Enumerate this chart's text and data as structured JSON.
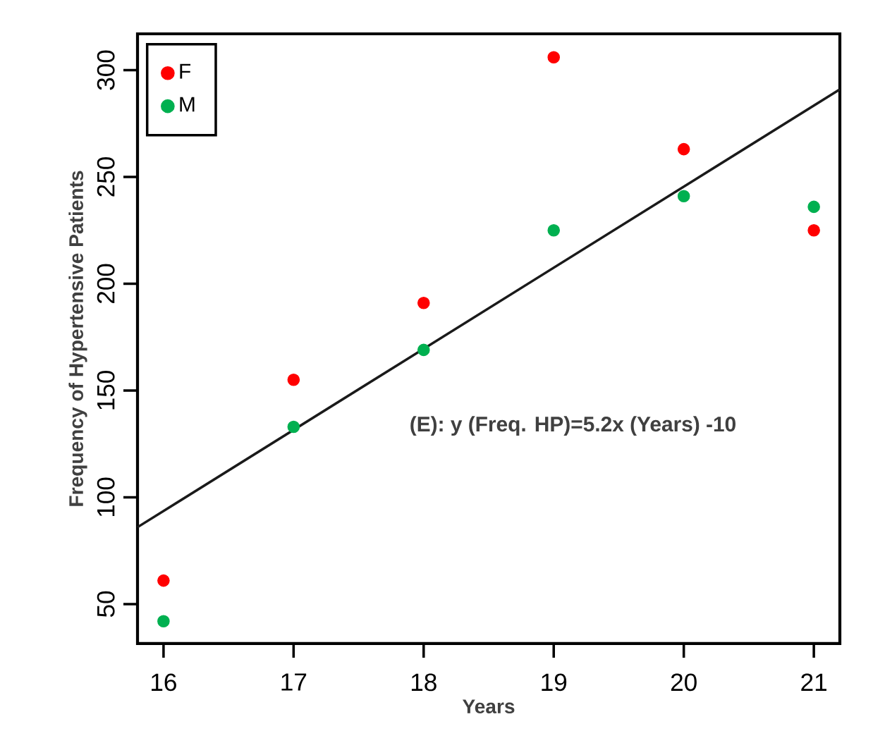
{
  "chart_data": {
    "type": "scatter",
    "xlabel": "Years",
    "ylabel": "Frequency of Hypertensive Patients",
    "x": [
      16,
      17,
      18,
      19,
      20,
      21
    ],
    "series": [
      {
        "name": "F",
        "marker": "circle",
        "color": "#ff0000",
        "values": [
          61,
          155,
          191,
          306,
          263,
          225
        ]
      },
      {
        "name": "M",
        "marker": "circle",
        "color": "#00b050",
        "values": [
          42,
          133,
          169,
          225,
          241,
          236
        ]
      },
      {
        "type": "line",
        "marker": "none",
        "color": "#1a1a1a",
        "x": [
          15.8,
          21.2
        ],
        "values": [
          86,
          291
        ]
      }
    ],
    "xlim": [
      15.8,
      21.2
    ],
    "ylim": [
      31.5,
      317
    ],
    "xticks": [
      16,
      17,
      18,
      19,
      20,
      21
    ],
    "yticks": [
      50,
      100,
      150,
      200,
      250,
      300
    ],
    "legend": "top left",
    "annotations": [
      "(E): y (Freq. HP)=5.2x (Years) -10"
    ]
  }
}
